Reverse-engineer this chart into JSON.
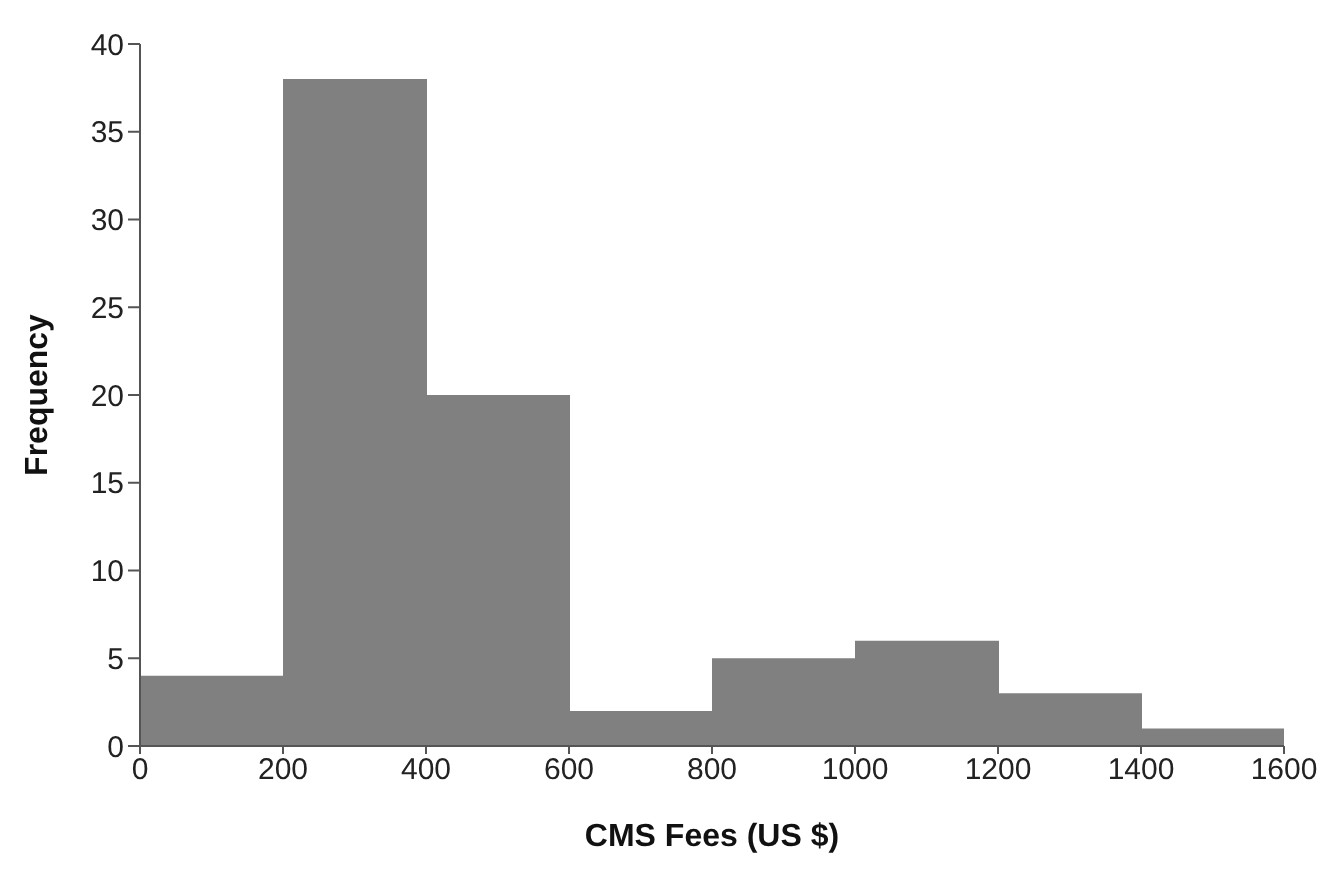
{
  "chart_data": {
    "type": "histogram",
    "xlabel": "CMS Fees (US $)",
    "ylabel": "Frequency",
    "bins": [
      0,
      200,
      400,
      600,
      800,
      1000,
      1200,
      1400,
      1600
    ],
    "values": [
      4,
      38,
      20,
      2,
      5,
      6,
      3,
      1
    ],
    "color": "#808080",
    "xlim": [
      0,
      1600
    ],
    "xticks": [
      0,
      200,
      400,
      600,
      800,
      1000,
      1200,
      1400,
      1600
    ],
    "ylim": [
      0,
      40
    ],
    "yticks": [
      0,
      5,
      10,
      15,
      20,
      25,
      30,
      35,
      40
    ]
  }
}
